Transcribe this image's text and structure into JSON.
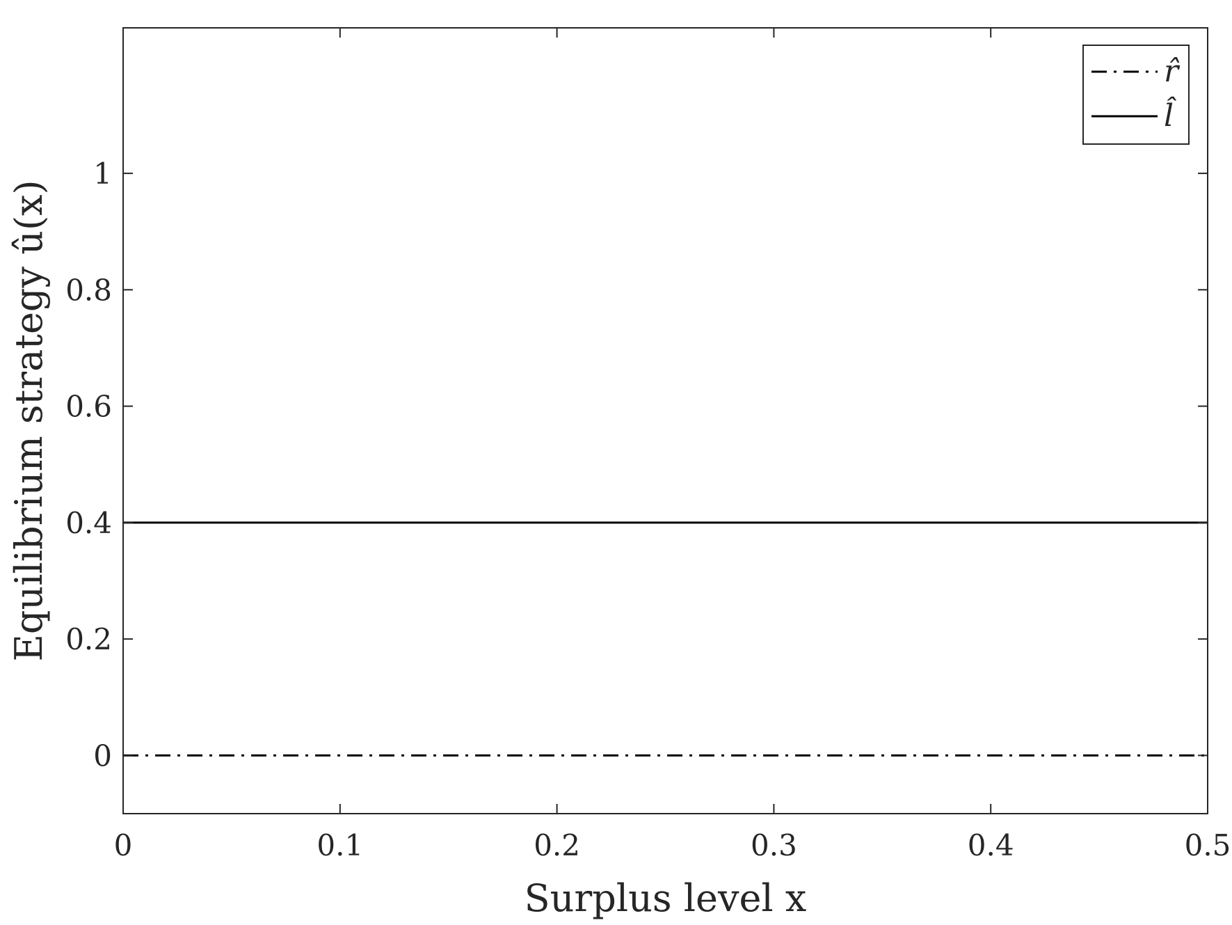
{
  "chart_data": {
    "type": "line",
    "title": "",
    "xlabel": "Surplus level x",
    "ylabel": "Equilibrium strategy û(x)",
    "xlim": [
      0,
      0.5
    ],
    "ylim": [
      -0.1,
      1.25
    ],
    "xticks": [
      "0",
      "0.1",
      "0.2",
      "0.3",
      "0.4",
      "0.5"
    ],
    "yticks": [
      "0",
      "0.2",
      "0.4",
      "0.6",
      "0.8",
      "1"
    ],
    "grid": false,
    "legend_position": "top-right",
    "series": [
      {
        "name": "r̂",
        "style": "dash-dot",
        "color": "#000000",
        "x": [
          0,
          0.5
        ],
        "y": [
          0,
          0
        ]
      },
      {
        "name": "l̂",
        "style": "solid",
        "color": "#000000",
        "x": [
          0,
          0.5
        ],
        "y": [
          0.4,
          0.4
        ]
      }
    ]
  }
}
